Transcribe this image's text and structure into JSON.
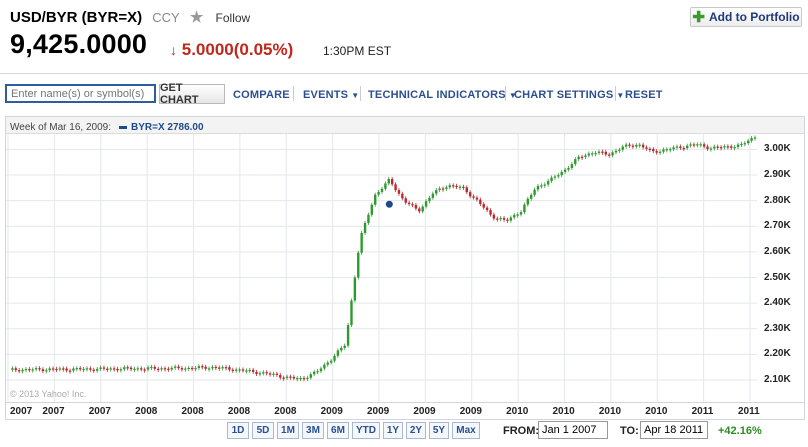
{
  "header": {
    "title": "USD/BYR (BYR=X)",
    "ccy": "CCY",
    "follow_label": "Follow",
    "price": "9,425.0000",
    "change": "5.0000(0.05%)",
    "time": "1:30PM EST",
    "add_portfolio_label": "Add to Portfolio"
  },
  "toolbar": {
    "search_placeholder": "Enter name(s) or symbol(s)",
    "get_chart_label": "GET CHART",
    "compare_label": "COMPARE",
    "events_label": "EVENTS",
    "technical_label": "TECHNICAL INDICATORS",
    "settings_label": "CHART SETTINGS",
    "reset_label": "RESET"
  },
  "chart_info": {
    "week_label": "Week of Mar 16, 2009:",
    "symbol_value": "BYR=X 2786.00",
    "copyright": "© 2013 Yahoo! Inc."
  },
  "chart_data": {
    "type": "candlestick",
    "x_labels": [
      "2007",
      "2007",
      "2007",
      "2008",
      "2008",
      "2008",
      "2008",
      "2009",
      "2009",
      "2009",
      "2009",
      "2010",
      "2010",
      "2010",
      "2010",
      "2011",
      "2011"
    ],
    "y_ticks": [
      "3.00K",
      "2.90K",
      "2.80K",
      "2.70K",
      "2.60K",
      "2.50K",
      "2.40K",
      "2.30K",
      "2.20K",
      "2.10K"
    ],
    "y_values": [
      3000,
      2900,
      2800,
      2700,
      2600,
      2500,
      2400,
      2300,
      2200,
      2100
    ],
    "ylim": [
      2030,
      3060
    ],
    "x_start": "2007-01",
    "x_end": "2011-04",
    "grid": true,
    "up_color": "#2f9a2f",
    "down_color": "#b8282f",
    "marker_color": "#1f4a8a",
    "marker": {
      "date": "2009-03-16",
      "value": 2786
    },
    "series": [
      {
        "date": "2007-01",
        "value": 2140
      },
      {
        "date": "2007-04",
        "value": 2142
      },
      {
        "date": "2007-07",
        "value": 2143
      },
      {
        "date": "2007-10",
        "value": 2145
      },
      {
        "date": "2008-01",
        "value": 2146
      },
      {
        "date": "2008-03",
        "value": 2150
      },
      {
        "date": "2008-05",
        "value": 2138
      },
      {
        "date": "2008-07",
        "value": 2122
      },
      {
        "date": "2008-08",
        "value": 2110
      },
      {
        "date": "2008-09",
        "value": 2105
      },
      {
        "date": "2008-10",
        "value": 2130
      },
      {
        "date": "2008-11",
        "value": 2180
      },
      {
        "date": "2008-12",
        "value": 2240
      },
      {
        "date": "2009-01",
        "value": 2650
      },
      {
        "date": "2009-02",
        "value": 2820
      },
      {
        "date": "2009-03",
        "value": 2880
      },
      {
        "date": "2009-04",
        "value": 2800
      },
      {
        "date": "2009-05",
        "value": 2760
      },
      {
        "date": "2009-06",
        "value": 2830
      },
      {
        "date": "2009-07",
        "value": 2860
      },
      {
        "date": "2009-08",
        "value": 2850
      },
      {
        "date": "2009-09",
        "value": 2800
      },
      {
        "date": "2009-10",
        "value": 2740
      },
      {
        "date": "2009-11",
        "value": 2720
      },
      {
        "date": "2009-12",
        "value": 2760
      },
      {
        "date": "2010-01",
        "value": 2850
      },
      {
        "date": "2010-02",
        "value": 2880
      },
      {
        "date": "2010-03",
        "value": 2920
      },
      {
        "date": "2010-04",
        "value": 2970
      },
      {
        "date": "2010-05",
        "value": 2990
      },
      {
        "date": "2010-06",
        "value": 2980
      },
      {
        "date": "2010-07",
        "value": 3010
      },
      {
        "date": "2010-08",
        "value": 3020
      },
      {
        "date": "2010-09",
        "value": 2990
      },
      {
        "date": "2010-10",
        "value": 3000
      },
      {
        "date": "2010-11",
        "value": 3010
      },
      {
        "date": "2010-12",
        "value": 3020
      },
      {
        "date": "2011-01",
        "value": 3005
      },
      {
        "date": "2011-02",
        "value": 3010
      },
      {
        "date": "2011-03",
        "value": 3015
      },
      {
        "date": "2011-04",
        "value": 3050
      }
    ]
  },
  "ranges": [
    "1D",
    "5D",
    "1M",
    "3M",
    "6M",
    "YTD",
    "1Y",
    "2Y",
    "5Y",
    "Max"
  ],
  "date_controls": {
    "from_label": "FROM:",
    "from_value": "Jan 1 2007",
    "to_label": "TO:",
    "to_value": "Apr 18 2011",
    "percent": "+42.16%"
  }
}
